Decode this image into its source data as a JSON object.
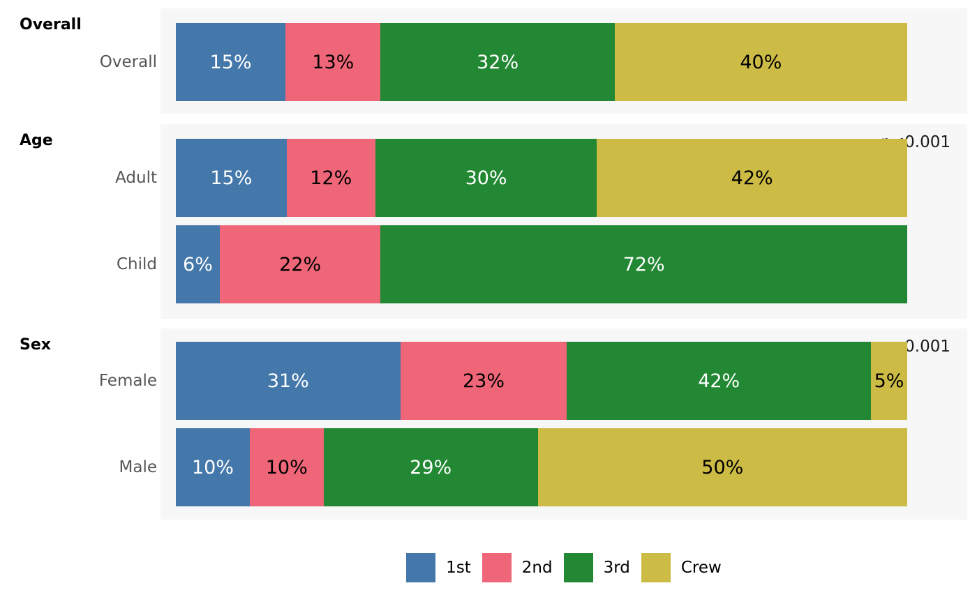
{
  "chart_data": {
    "type": "bar",
    "subtype": "horizontal-stacked-percent",
    "title": "",
    "value_suffix": "%",
    "series_labels": [
      "1st",
      "2nd",
      "3rd",
      "Crew"
    ],
    "series_colors": [
      "#4477AA",
      "#EE6677",
      "#228833",
      "#CCBB44"
    ],
    "series_text_colors": [
      "#ffffff",
      "#000000",
      "#ffffff",
      "#000000"
    ],
    "panel_background": "#f7f7f7",
    "groups": [
      {
        "header": "Overall",
        "p_value": "",
        "rows": [
          {
            "label": "Overall",
            "values": [
              15,
              13,
              32,
              40
            ]
          }
        ]
      },
      {
        "header": "Age",
        "p_value": "p<0.001",
        "rows": [
          {
            "label": "Adult",
            "values": [
              15,
              12,
              30,
              42
            ]
          },
          {
            "label": "Child",
            "values": [
              6,
              22,
              72,
              0
            ]
          }
        ]
      },
      {
        "header": "Sex",
        "p_value": "p<0.001",
        "rows": [
          {
            "label": "Female",
            "values": [
              31,
              23,
              42,
              5
            ]
          },
          {
            "label": "Male",
            "values": [
              10,
              10,
              29,
              50
            ]
          }
        ]
      }
    ],
    "legend": [
      "1st",
      "2nd",
      "3rd",
      "Crew"
    ],
    "legend_position": "bottom",
    "axis": {
      "x_min": 0,
      "x_max": 100,
      "grid": false,
      "ticks_visible": false
    }
  }
}
